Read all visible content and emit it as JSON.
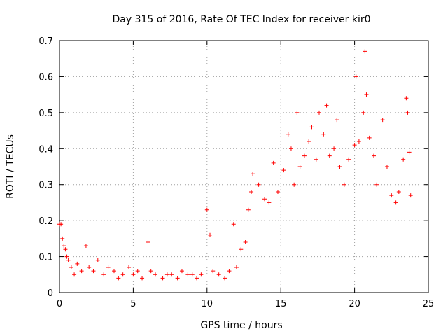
{
  "chart_data": {
    "type": "scatter",
    "title": "Day 315 of 2016, Rate Of TEC Index for receiver kir0",
    "xlabel": "GPS time / hours",
    "ylabel": "ROTI / TECUs",
    "xlim": [
      0,
      25
    ],
    "ylim": [
      0,
      0.7
    ],
    "xticks": [
      0,
      5,
      10,
      15,
      20,
      25
    ],
    "yticks": [
      0,
      0.1,
      0.2,
      0.3,
      0.4,
      0.5,
      0.6,
      0.7
    ],
    "xtick_labels": [
      "0",
      "5",
      "10",
      "15",
      "20",
      "25"
    ],
    "ytick_labels": [
      "0",
      "0.1",
      "0.2",
      "0.3",
      "0.4",
      "0.5",
      "0.6",
      "0.7"
    ],
    "grid": true,
    "marker": "+",
    "color": "#ff0000",
    "series": [
      {
        "name": "ROTI",
        "points": [
          [
            0.0,
            0.19
          ],
          [
            0.1,
            0.19
          ],
          [
            0.2,
            0.15
          ],
          [
            0.3,
            0.13
          ],
          [
            0.4,
            0.12
          ],
          [
            0.5,
            0.1
          ],
          [
            0.6,
            0.09
          ],
          [
            0.8,
            0.07
          ],
          [
            1.0,
            0.05
          ],
          [
            1.2,
            0.08
          ],
          [
            1.5,
            0.06
          ],
          [
            1.8,
            0.13
          ],
          [
            2.0,
            0.07
          ],
          [
            2.3,
            0.06
          ],
          [
            2.6,
            0.09
          ],
          [
            3.0,
            0.05
          ],
          [
            3.3,
            0.07
          ],
          [
            3.7,
            0.06
          ],
          [
            4.0,
            0.04
          ],
          [
            4.3,
            0.05
          ],
          [
            4.7,
            0.07
          ],
          [
            5.0,
            0.05
          ],
          [
            5.3,
            0.06
          ],
          [
            5.6,
            0.04
          ],
          [
            6.0,
            0.14
          ],
          [
            6.2,
            0.06
          ],
          [
            6.5,
            0.05
          ],
          [
            7.0,
            0.04
          ],
          [
            7.3,
            0.05
          ],
          [
            7.6,
            0.05
          ],
          [
            8.0,
            0.04
          ],
          [
            8.3,
            0.06
          ],
          [
            8.7,
            0.05
          ],
          [
            9.0,
            0.05
          ],
          [
            9.3,
            0.04
          ],
          [
            9.6,
            0.05
          ],
          [
            10.0,
            0.23
          ],
          [
            10.2,
            0.16
          ],
          [
            10.4,
            0.06
          ],
          [
            10.8,
            0.05
          ],
          [
            11.2,
            0.04
          ],
          [
            11.5,
            0.06
          ],
          [
            11.8,
            0.19
          ],
          [
            12.0,
            0.07
          ],
          [
            12.3,
            0.12
          ],
          [
            12.6,
            0.14
          ],
          [
            12.8,
            0.23
          ],
          [
            13.0,
            0.28
          ],
          [
            13.1,
            0.33
          ],
          [
            13.5,
            0.3
          ],
          [
            13.9,
            0.26
          ],
          [
            14.2,
            0.25
          ],
          [
            14.5,
            0.36
          ],
          [
            14.8,
            0.28
          ],
          [
            15.2,
            0.34
          ],
          [
            15.5,
            0.44
          ],
          [
            15.7,
            0.4
          ],
          [
            15.9,
            0.3
          ],
          [
            16.1,
            0.5
          ],
          [
            16.3,
            0.35
          ],
          [
            16.6,
            0.38
          ],
          [
            16.9,
            0.42
          ],
          [
            17.1,
            0.46
          ],
          [
            17.4,
            0.37
          ],
          [
            17.6,
            0.5
          ],
          [
            17.9,
            0.44
          ],
          [
            18.1,
            0.52
          ],
          [
            18.3,
            0.38
          ],
          [
            18.6,
            0.4
          ],
          [
            18.8,
            0.48
          ],
          [
            19.0,
            0.35
          ],
          [
            19.3,
            0.3
          ],
          [
            19.6,
            0.37
          ],
          [
            20.0,
            0.41
          ],
          [
            20.1,
            0.6
          ],
          [
            20.3,
            0.42
          ],
          [
            20.6,
            0.5
          ],
          [
            20.7,
            0.67
          ],
          [
            20.8,
            0.55
          ],
          [
            21.0,
            0.43
          ],
          [
            21.3,
            0.38
          ],
          [
            21.5,
            0.3
          ],
          [
            21.9,
            0.48
          ],
          [
            22.2,
            0.35
          ],
          [
            22.5,
            0.27
          ],
          [
            22.8,
            0.25
          ],
          [
            23.0,
            0.28
          ],
          [
            23.3,
            0.37
          ],
          [
            23.5,
            0.54
          ],
          [
            23.6,
            0.5
          ],
          [
            23.7,
            0.39
          ],
          [
            23.8,
            0.27
          ]
        ]
      }
    ]
  }
}
